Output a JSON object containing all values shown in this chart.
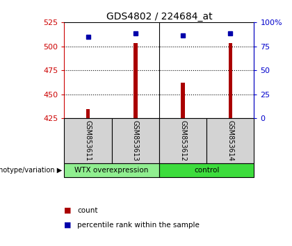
{
  "title": "GDS4802 / 224684_at",
  "samples": [
    "GSM853611",
    "GSM853613",
    "GSM853612",
    "GSM853614"
  ],
  "count_values": [
    435,
    503,
    462,
    503
  ],
  "percentile_values": [
    85,
    88,
    86,
    88
  ],
  "groups": [
    {
      "label": "WTX overexpression",
      "indices": [
        0,
        1
      ],
      "color": "#90ee90"
    },
    {
      "label": "control",
      "indices": [
        2,
        3
      ],
      "color": "#3ddc3d"
    }
  ],
  "ylim_left": [
    425,
    525
  ],
  "ylim_right": [
    0,
    100
  ],
  "yticks_left": [
    425,
    450,
    475,
    500,
    525
  ],
  "yticks_right": [
    0,
    25,
    50,
    75,
    100
  ],
  "ytick_labels_right": [
    "0",
    "25",
    "50",
    "75",
    "100%"
  ],
  "bar_color": "#aa0000",
  "square_color": "#0000aa",
  "bar_width": 0.08,
  "background_color": "#ffffff",
  "plot_bg": "#ffffff",
  "left_axis_color": "#cc0000",
  "right_axis_color": "#0000cc",
  "sample_box_color": "#d3d3d3",
  "legend_count_color": "#aa0000",
  "legend_pct_color": "#0000aa",
  "figsize": [
    4.2,
    3.54
  ],
  "dpi": 100
}
